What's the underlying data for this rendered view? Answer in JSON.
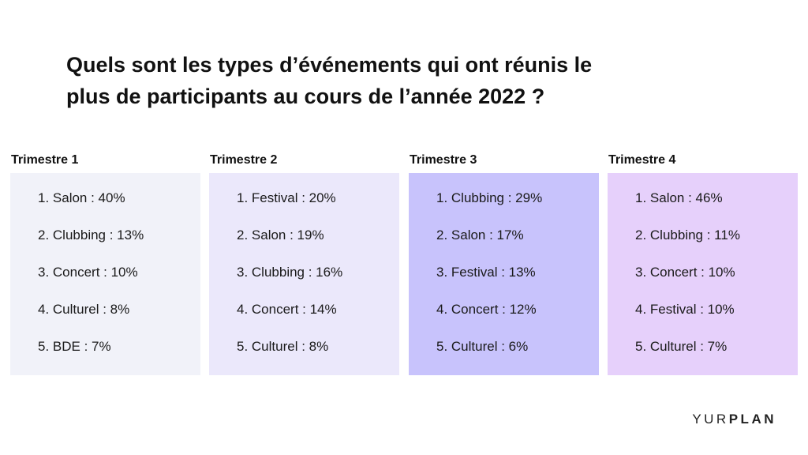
{
  "title": {
    "line1": "Quels sont les types d’événements qui ont réunis le",
    "line2": "plus de participants au cours de l’année 2022 ?"
  },
  "quarters": [
    {
      "heading": "Trimestre 1",
      "color": "#f1f2f9",
      "items": [
        "1. Salon : 40%",
        "2. Clubbing : 13%",
        "3. Concert : 10%",
        "4. Culturel : 8%",
        "5. BDE : 7%"
      ]
    },
    {
      "heading": "Trimestre 2",
      "color": "#ebe8fb",
      "items": [
        "1. Festival : 20%",
        "2. Salon : 19%",
        "3. Clubbing : 16%",
        "4. Concert : 14%",
        "5. Culturel : 8%"
      ]
    },
    {
      "heading": "Trimestre 3",
      "color": "#c8c3fc",
      "items": [
        "1. Clubbing : 29%",
        "2. Salon : 17%",
        "3. Festival : 13%",
        "4. Concert : 12%",
        "5. Culturel : 6%"
      ]
    },
    {
      "heading": "Trimestre 4",
      "color": "#e6d0fb",
      "items": [
        "1. Salon : 46%",
        "2. Clubbing : 11%",
        "3. Concert : 10%",
        "4. Festival : 10%",
        "5. Culturel : 7%"
      ]
    }
  ],
  "brand": {
    "part1": "YUR",
    "part2": "PLAN"
  }
}
